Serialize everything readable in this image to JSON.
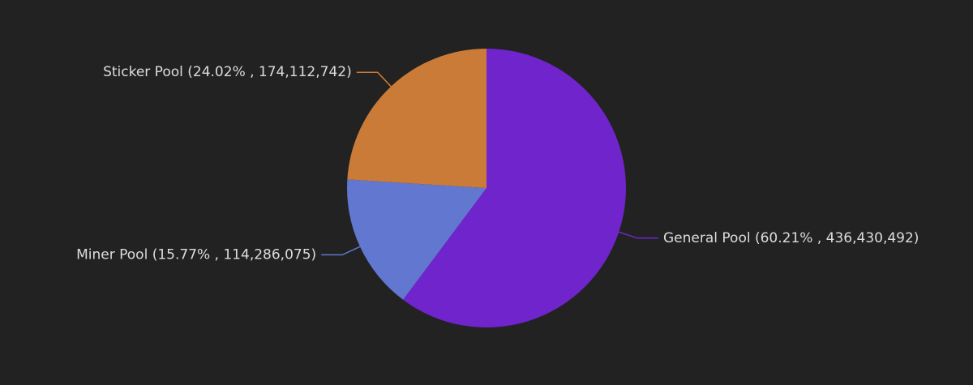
{
  "chart_data": {
    "type": "pie",
    "categories": [
      "General Pool",
      "Miner Pool",
      "Sticker Pool"
    ],
    "values": [
      436430492,
      114286075,
      174112742
    ],
    "value_labels": [
      "(60.21% , 436,430,492)",
      "(15.77% , 114,286,075)",
      "(24.02% , 174,112,742)"
    ],
    "colors": [
      "#7024cc",
      "#6177d0",
      "#cb7b38"
    ]
  }
}
